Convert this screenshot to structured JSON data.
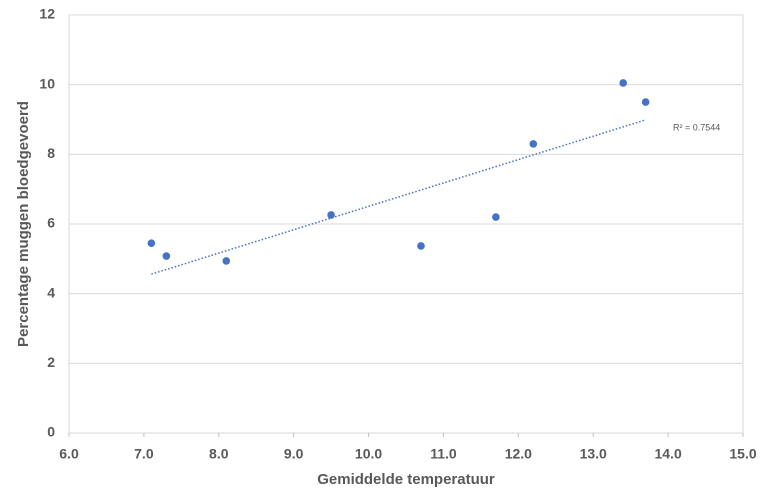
{
  "chart_data": {
    "type": "scatter",
    "x_label": "Gemiddelde temperatuur",
    "y_label": "Percentage muggen bloedgevoerd",
    "series": [
      {
        "color": "#4472c4",
        "x": [
          7.1,
          7.3,
          8.1,
          9.5,
          10.7,
          11.7,
          12.2,
          13.4,
          13.7
        ],
        "values": [
          5.45,
          5.08,
          4.94,
          6.26,
          5.37,
          6.2,
          8.3,
          10.05,
          9.5
        ]
      }
    ],
    "trendline": {
      "x": [
        7.1,
        13.7
      ],
      "y": [
        4.56,
        8.99
      ],
      "label": "R² = 0.7544",
      "color": "#4472c4"
    },
    "xlim": [
      6,
      15
    ],
    "xticks": [
      {
        "value": 6,
        "label": "6.0"
      },
      {
        "value": 7,
        "label": "7.0"
      },
      {
        "value": 8,
        "label": "8.0"
      },
      {
        "value": 9,
        "label": "9.0"
      },
      {
        "value": 10,
        "label": "10.0"
      },
      {
        "value": 11,
        "label": "11.0"
      },
      {
        "value": 12,
        "label": "12.0"
      },
      {
        "value": 13,
        "label": "13.0"
      },
      {
        "value": 14,
        "label": "14.0"
      },
      {
        "value": 15,
        "label": "15.0"
      }
    ],
    "ylim": [
      0,
      12
    ],
    "yticks": [
      0,
      2,
      4,
      6,
      8,
      10,
      12
    ],
    "grid": true
  }
}
